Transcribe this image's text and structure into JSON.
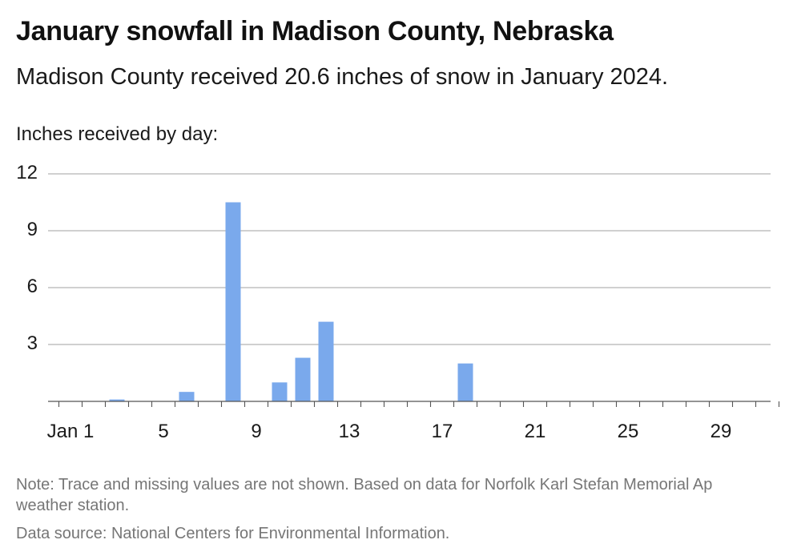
{
  "title": "January snowfall in Madison County, Nebraska",
  "subtitle": "Madison County received 20.6 inches of snow in January 2024.",
  "axis_caption": "Inches received by day:",
  "note": "Note: Trace and missing values are not shown. Based on data for Norfolk Karl Stefan Memorial Ap weather station.",
  "source": "Data source: National Centers for Environmental Information.",
  "colors": {
    "bar": "#7aa9ec",
    "grid": "#b3b3b3",
    "baseline": "#555555",
    "text": "#1a1a1a",
    "footnote": "#767676"
  },
  "chart_data": {
    "type": "bar",
    "title": "January snowfall in Madison County, Nebraska",
    "subtitle": "Madison County received 20.6 inches of snow in January 2024.",
    "ylabel": "Inches received by day:",
    "xlabel": "",
    "ylim": [
      0,
      12
    ],
    "yticks": [
      3,
      6,
      9,
      12
    ],
    "x_ticks": [
      {
        "day": 1,
        "label": "Jan 1"
      },
      {
        "day": 5,
        "label": "5"
      },
      {
        "day": 9,
        "label": "9"
      },
      {
        "day": 13,
        "label": "13"
      },
      {
        "day": 17,
        "label": "17"
      },
      {
        "day": 21,
        "label": "21"
      },
      {
        "day": 25,
        "label": "25"
      },
      {
        "day": 29,
        "label": "29"
      }
    ],
    "days": [
      1,
      2,
      3,
      4,
      5,
      6,
      7,
      8,
      9,
      10,
      11,
      12,
      13,
      14,
      15,
      16,
      17,
      18,
      19,
      20,
      21,
      22,
      23,
      24,
      25,
      26,
      27,
      28,
      29,
      30,
      31
    ],
    "values": [
      0,
      0,
      0.1,
      0,
      0,
      0.5,
      0,
      10.5,
      0,
      1.0,
      2.3,
      4.2,
      0,
      0,
      0,
      0,
      0,
      2.0,
      0,
      0,
      0,
      0,
      0,
      0,
      0,
      0,
      0,
      0,
      0,
      0,
      0
    ],
    "grid": true,
    "legend": "none"
  }
}
